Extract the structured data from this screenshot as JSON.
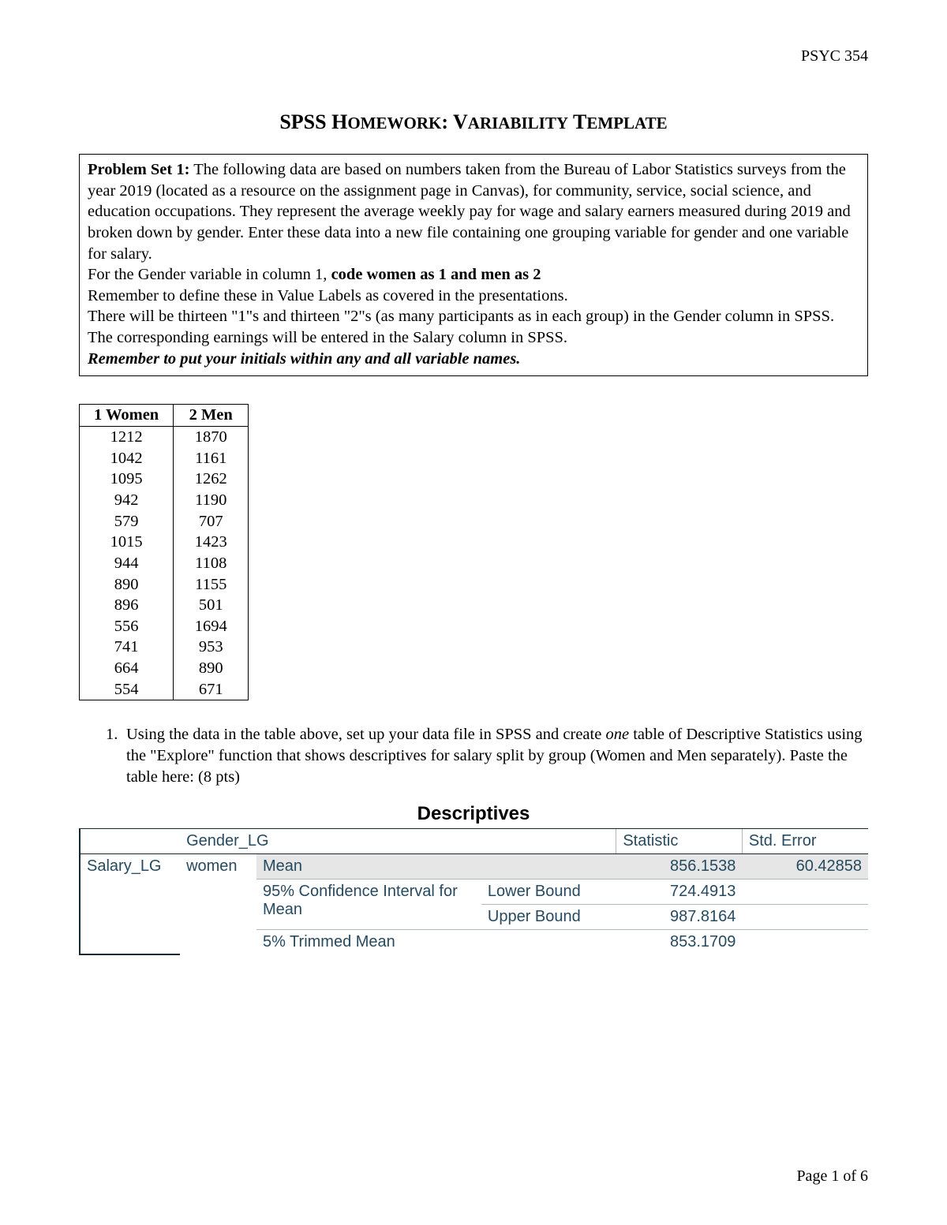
{
  "header": {
    "course": "PSYC 354"
  },
  "title": {
    "t1": "SPSS H",
    "t2": "OMEWORK",
    "t3": ": V",
    "t4": "ARIABILITY",
    "t5": " T",
    "t6": "EMPLATE"
  },
  "problem": {
    "label": "Problem Set 1:",
    "p1": " The following data are based on numbers taken from the Bureau of Labor Statistics surveys from the year 2019 (located as a resource on the assignment page in Canvas), for community, service, social science, and education occupations. They represent the average weekly pay for wage and salary earners measured during 2019 and broken down by gender. Enter these data into a new file containing one grouping variable for gender and one variable for salary.",
    "p2a": "For the Gender variable in column 1, ",
    "p2b": "code women as 1 and men as 2",
    "p3": "Remember to define these in Value Labels as covered in the presentations.",
    "p4": "There will be thirteen \"1\"s and thirteen \"2\"s (as many participants as in each group) in the Gender column in SPSS.",
    "p5": "The corresponding earnings will be entered in the Salary column in SPSS.",
    "remember": "Remember to put your initials within any and all variable names."
  },
  "data_table": {
    "columns": [
      "1 Women",
      "2 Men"
    ],
    "rows": [
      [
        "1212",
        "1870"
      ],
      [
        "1042",
        "1161"
      ],
      [
        "1095",
        "1262"
      ],
      [
        "942",
        "1190"
      ],
      [
        "579",
        "707"
      ],
      [
        "1015",
        "1423"
      ],
      [
        "944",
        "1108"
      ],
      [
        "890",
        "1155"
      ],
      [
        "896",
        "501"
      ],
      [
        "556",
        "1694"
      ],
      [
        "741",
        "953"
      ],
      [
        "664",
        "890"
      ],
      [
        "554",
        "671"
      ]
    ]
  },
  "question1": {
    "num": "1.",
    "text_a": "Using the data in the table above, set up your data file in SPSS and create ",
    "em": "one",
    "text_b": " table of Descriptive Statistics using the \"Explore\" function that shows descriptives for salary split by group (Women and Men separately). Paste the table here: (8 pts)"
  },
  "spss": {
    "title": "Descriptives",
    "header": {
      "gender": "Gender_LG",
      "stat": "Statistic",
      "se": "Std. Error"
    },
    "rows": {
      "salary": "Salary_LG",
      "group": "women",
      "mean_label": "Mean",
      "mean_stat": "856.1538",
      "mean_se": "60.42858",
      "ci_label": "95% Confidence Interval for Mean",
      "lower": "Lower Bound",
      "lower_stat": "724.4913",
      "upper": "Upper Bound",
      "upper_stat": "987.8164",
      "trim_label": "5% Trimmed Mean",
      "trim_stat": "853.1709"
    }
  },
  "footer": {
    "pa": "Page ",
    "pn": "1",
    "pb": " of ",
    "pt": "6"
  },
  "colors": {
    "text": "#000000",
    "spss_text": "#264a60",
    "spss_border_dark": "#152935",
    "spss_border_light": "#aeb8c0",
    "shade": "#e6e6e6"
  }
}
